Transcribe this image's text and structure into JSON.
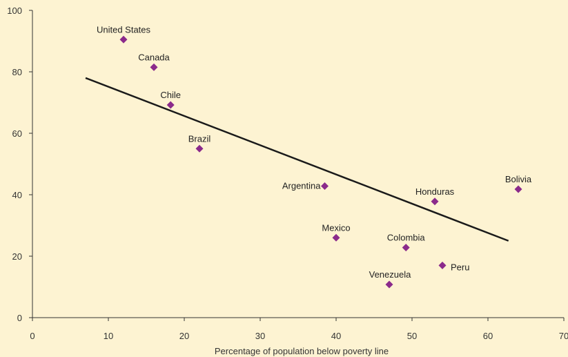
{
  "chart_data": {
    "type": "scatter",
    "title": "",
    "xlabel": "Percentage of population below poverty line",
    "ylabel": "",
    "xlim": [
      0,
      70
    ],
    "ylim": [
      0,
      100
    ],
    "x_ticks": [
      "0",
      "10",
      "20",
      "30",
      "40",
      "50",
      "60",
      "70"
    ],
    "y_ticks": [
      "0",
      "20",
      "40",
      "60",
      "80",
      "100"
    ],
    "grid": false,
    "marker_color": "#8b2a8b",
    "points": [
      {
        "label": "United States",
        "x": 12,
        "y": 90.5
      },
      {
        "label": "Canada",
        "x": 16,
        "y": 81.5
      },
      {
        "label": "Chile",
        "x": 18.2,
        "y": 69.2
      },
      {
        "label": "Brazil",
        "x": 22,
        "y": 55
      },
      {
        "label": "Argentina",
        "x": 38.5,
        "y": 42.8
      },
      {
        "label": "Mexico",
        "x": 40,
        "y": 26
      },
      {
        "label": "Colombia",
        "x": 49.2,
        "y": 22.8
      },
      {
        "label": "Venezuela",
        "x": 47,
        "y": 10.8
      },
      {
        "label": "Peru",
        "x": 54,
        "y": 17
      },
      {
        "label": "Honduras",
        "x": 53,
        "y": 37.8
      },
      {
        "label": "Bolivia",
        "x": 64,
        "y": 41.8
      }
    ],
    "trend_line": {
      "x1": 7,
      "y1": 78,
      "x2": 62.7,
      "y2": 25
    }
  }
}
